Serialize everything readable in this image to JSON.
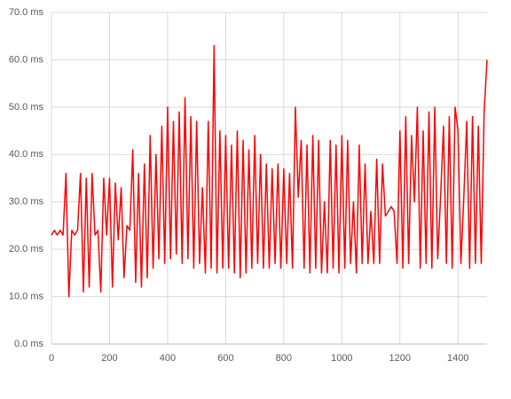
{
  "chart_data": {
    "type": "line",
    "x": [
      0,
      10,
      20,
      30,
      40,
      50,
      60,
      70,
      80,
      90,
      100,
      110,
      120,
      130,
      140,
      150,
      160,
      170,
      180,
      190,
      200,
      210,
      220,
      230,
      240,
      250,
      260,
      270,
      280,
      290,
      300,
      310,
      320,
      330,
      340,
      350,
      360,
      370,
      380,
      390,
      400,
      410,
      420,
      430,
      440,
      450,
      460,
      470,
      480,
      490,
      500,
      510,
      520,
      530,
      540,
      550,
      560,
      570,
      580,
      590,
      600,
      610,
      620,
      630,
      640,
      650,
      660,
      670,
      680,
      690,
      700,
      710,
      720,
      730,
      740,
      750,
      760,
      770,
      780,
      790,
      800,
      810,
      820,
      830,
      840,
      850,
      860,
      870,
      880,
      890,
      900,
      910,
      920,
      930,
      940,
      950,
      960,
      970,
      980,
      990,
      1000,
      1010,
      1020,
      1030,
      1040,
      1050,
      1060,
      1070,
      1080,
      1090,
      1100,
      1110,
      1120,
      1130,
      1140,
      1150,
      1160,
      1170,
      1180,
      1190,
      1200,
      1210,
      1220,
      1230,
      1240,
      1250,
      1260,
      1270,
      1280,
      1290,
      1300,
      1310,
      1320,
      1330,
      1340,
      1350,
      1360,
      1370,
      1380,
      1390,
      1400,
      1410,
      1420,
      1430,
      1440,
      1450,
      1460,
      1470,
      1480,
      1490,
      1500
    ],
    "series": [
      {
        "color": "#ff0000",
        "values": [
          23,
          24,
          23,
          24,
          23,
          36,
          10,
          24,
          23,
          24,
          36,
          11,
          35,
          12,
          36,
          23,
          24,
          11,
          35,
          23,
          35,
          12,
          34,
          22,
          33,
          14,
          25,
          24,
          41,
          13,
          36,
          12,
          38,
          14,
          44,
          16,
          40,
          18,
          46,
          17,
          50,
          18,
          47,
          19,
          49,
          17,
          52,
          18,
          48,
          16,
          47,
          17,
          33,
          15,
          47,
          16,
          63,
          15,
          45,
          16,
          44,
          16,
          42,
          15,
          45,
          14,
          43,
          15,
          41,
          16,
          44,
          17,
          40,
          16,
          38,
          16,
          37,
          17,
          38,
          16,
          37,
          17,
          36,
          16,
          50,
          31,
          43,
          16,
          42,
          15,
          44,
          16,
          43,
          15,
          30,
          15,
          43,
          16,
          42,
          15,
          44,
          16,
          43,
          17,
          30,
          15,
          42,
          17,
          38,
          17,
          28,
          17,
          39,
          17,
          38,
          27,
          28,
          29,
          28,
          17,
          45,
          16,
          48,
          17,
          44,
          30,
          50,
          16,
          45,
          17,
          49,
          16,
          50,
          18,
          31,
          46,
          17,
          48,
          16,
          50,
          45,
          17,
          31,
          47,
          16,
          48,
          17,
          46,
          17,
          49,
          60
        ]
      }
    ],
    "xlim": [
      0,
      1500
    ],
    "xticks": [
      0,
      200,
      400,
      600,
      800,
      1000,
      1200,
      1400
    ],
    "ylim": [
      0,
      70
    ],
    "yticks": [
      {
        "value": 0,
        "label": "0.0 ms"
      },
      {
        "value": 10,
        "label": "10.0 ms"
      },
      {
        "value": 20,
        "label": "20.0 ms"
      },
      {
        "value": 30,
        "label": "30.0 ms"
      },
      {
        "value": 40,
        "label": "40.0 ms"
      },
      {
        "value": 50,
        "label": "50.0 ms"
      },
      {
        "value": 60,
        "label": "60.0 ms"
      },
      {
        "value": 70,
        "label": "70.0 ms"
      }
    ],
    "grid": true
  }
}
